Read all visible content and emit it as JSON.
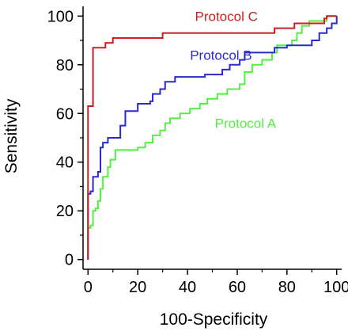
{
  "chart_data": {
    "type": "line",
    "xlabel": "100-Specificity",
    "ylabel": "Sensitivity",
    "xlim": [
      -2,
      102
    ],
    "ylim": [
      -4,
      104
    ],
    "xticks": [
      0,
      20,
      40,
      60,
      80,
      100
    ],
    "yticks": [
      0,
      20,
      40,
      60,
      80,
      100
    ],
    "xtick_labels": [
      "0",
      "20",
      "40",
      "60",
      "80",
      "100"
    ],
    "ytick_labels": [
      "0",
      "20",
      "40",
      "60",
      "80",
      "100"
    ],
    "grid": false,
    "series": [
      {
        "name": "Protocol C",
        "color": "#cc2020",
        "points": [
          [
            0,
            0
          ],
          [
            0,
            63
          ],
          [
            2,
            63
          ],
          [
            2,
            87
          ],
          [
            7,
            87
          ],
          [
            7,
            89
          ],
          [
            10,
            89
          ],
          [
            10,
            91
          ],
          [
            30,
            91
          ],
          [
            30,
            93
          ],
          [
            65,
            93
          ],
          [
            65,
            93
          ],
          [
            75,
            93
          ],
          [
            75,
            95
          ],
          [
            83,
            95
          ],
          [
            83,
            97
          ],
          [
            95,
            97
          ],
          [
            95,
            99
          ],
          [
            96,
            99
          ],
          [
            96,
            100
          ],
          [
            100,
            100
          ]
        ]
      },
      {
        "name": "Protocol B",
        "color": "#2a2acc",
        "points": [
          [
            0,
            0
          ],
          [
            0,
            27
          ],
          [
            1,
            27
          ],
          [
            1,
            28
          ],
          [
            2,
            28
          ],
          [
            2,
            34
          ],
          [
            4,
            34
          ],
          [
            4,
            36
          ],
          [
            5,
            36
          ],
          [
            5,
            46
          ],
          [
            6,
            46
          ],
          [
            6,
            48
          ],
          [
            8,
            48
          ],
          [
            8,
            50
          ],
          [
            13,
            50
          ],
          [
            13,
            55
          ],
          [
            15,
            55
          ],
          [
            15,
            61
          ],
          [
            20,
            61
          ],
          [
            20,
            64
          ],
          [
            25,
            64
          ],
          [
            25,
            65
          ],
          [
            26,
            65
          ],
          [
            26,
            68
          ],
          [
            29,
            68
          ],
          [
            29,
            70
          ],
          [
            31,
            70
          ],
          [
            31,
            73
          ],
          [
            35,
            73
          ],
          [
            35,
            75
          ],
          [
            47,
            75
          ],
          [
            47,
            76
          ],
          [
            54,
            76
          ],
          [
            54,
            78
          ],
          [
            57,
            78
          ],
          [
            57,
            80
          ],
          [
            61,
            80
          ],
          [
            61,
            82
          ],
          [
            63,
            82
          ],
          [
            63,
            85
          ],
          [
            75,
            85
          ],
          [
            75,
            87
          ],
          [
            80,
            87
          ],
          [
            80,
            88
          ],
          [
            90,
            88
          ],
          [
            90,
            90
          ],
          [
            93,
            90
          ],
          [
            93,
            93
          ],
          [
            96,
            93
          ],
          [
            96,
            95
          ],
          [
            98,
            95
          ],
          [
            98,
            97
          ],
          [
            100,
            97
          ],
          [
            100,
            100
          ]
        ]
      },
      {
        "name": "Protocol A",
        "color": "#55ee44",
        "points": [
          [
            0,
            0
          ],
          [
            0,
            13
          ],
          [
            1,
            13
          ],
          [
            1,
            14
          ],
          [
            2,
            14
          ],
          [
            2,
            20
          ],
          [
            3,
            20
          ],
          [
            3,
            21
          ],
          [
            4,
            21
          ],
          [
            4,
            24
          ],
          [
            5,
            24
          ],
          [
            5,
            29
          ],
          [
            6,
            29
          ],
          [
            6,
            34
          ],
          [
            8,
            34
          ],
          [
            8,
            38
          ],
          [
            9,
            38
          ],
          [
            9,
            41
          ],
          [
            11,
            41
          ],
          [
            11,
            45
          ],
          [
            20,
            45
          ],
          [
            20,
            46
          ],
          [
            23,
            46
          ],
          [
            23,
            48
          ],
          [
            26,
            48
          ],
          [
            26,
            51
          ],
          [
            29,
            51
          ],
          [
            29,
            53
          ],
          [
            31,
            53
          ],
          [
            31,
            56
          ],
          [
            33,
            56
          ],
          [
            33,
            58
          ],
          [
            37,
            58
          ],
          [
            37,
            60
          ],
          [
            41,
            60
          ],
          [
            41,
            62
          ],
          [
            45,
            62
          ],
          [
            45,
            64
          ],
          [
            48,
            64
          ],
          [
            48,
            66
          ],
          [
            52,
            66
          ],
          [
            52,
            68
          ],
          [
            56,
            68
          ],
          [
            56,
            70
          ],
          [
            61,
            70
          ],
          [
            61,
            72
          ],
          [
            63,
            72
          ],
          [
            63,
            77
          ],
          [
            66,
            77
          ],
          [
            66,
            80
          ],
          [
            70,
            80
          ],
          [
            70,
            82
          ],
          [
            74,
            82
          ],
          [
            74,
            85
          ],
          [
            76,
            85
          ],
          [
            76,
            88
          ],
          [
            82,
            88
          ],
          [
            82,
            90
          ],
          [
            84,
            90
          ],
          [
            84,
            93
          ],
          [
            86,
            93
          ],
          [
            86,
            96
          ],
          [
            89,
            96
          ],
          [
            89,
            98
          ],
          [
            96,
            98
          ],
          [
            96,
            100
          ],
          [
            100,
            100
          ]
        ]
      }
    ],
    "annotations": [
      {
        "series": "Protocol C",
        "text": "Protocol C",
        "x": 43,
        "y": 98
      },
      {
        "series": "Protocol B",
        "text": "Protocol B",
        "x": 41,
        "y": 82
      },
      {
        "series": "Protocol A",
        "text": "Protocol A",
        "x": 51,
        "y": 54
      }
    ]
  }
}
